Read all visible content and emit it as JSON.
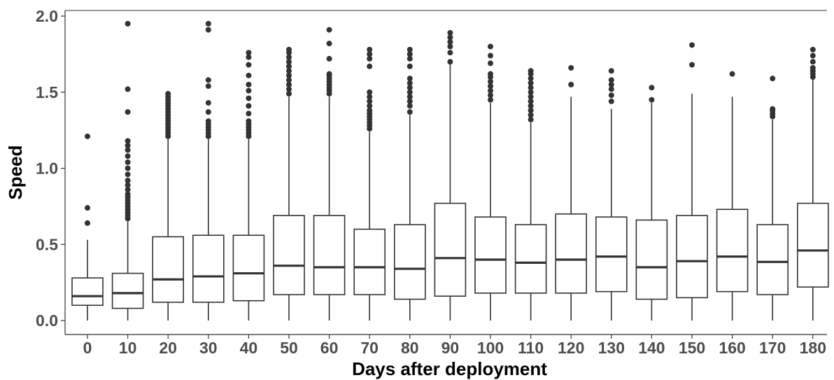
{
  "chart_data": {
    "type": "boxplot",
    "title": "",
    "xlabel": "Days after deployment",
    "ylabel": "Speed",
    "ylim": [
      0.0,
      2.0
    ],
    "y_ticks": [
      "0.0",
      "0.5",
      "1.0",
      "1.5",
      "2.0"
    ],
    "y_tick_values": [
      0.0,
      0.5,
      1.0,
      1.5,
      2.0
    ],
    "grid": false,
    "legend": "none",
    "colors": {
      "box_fill": "#ffffff",
      "box_stroke": "#333333",
      "outlier": "#333333",
      "axis": "#333333",
      "tick_label": "#4d4d4d",
      "axis_title": "#000000"
    },
    "categories": [
      "0",
      "10",
      "20",
      "30",
      "40",
      "50",
      "60",
      "70",
      "80",
      "90",
      "100",
      "110",
      "120",
      "130",
      "140",
      "150",
      "160",
      "170",
      "180"
    ],
    "boxes": [
      {
        "category": "0",
        "whisker_low": 0.0,
        "q1": 0.1,
        "median": 0.16,
        "q3": 0.28,
        "whisker_high": 0.53,
        "outliers": [
          0.64,
          0.74,
          1.21
        ]
      },
      {
        "category": "10",
        "whisker_low": 0.0,
        "q1": 0.08,
        "median": 0.18,
        "q3": 0.31,
        "whisker_high": 0.65,
        "outliers": [
          0.67,
          0.69,
          0.71,
          0.73,
          0.75,
          0.77,
          0.79,
          0.81,
          0.83,
          0.86,
          0.89,
          0.92,
          0.96,
          1.0,
          1.04,
          1.08,
          1.12,
          1.15,
          1.18,
          1.37,
          1.52,
          1.95
        ]
      },
      {
        "category": "20",
        "whisker_low": 0.0,
        "q1": 0.12,
        "median": 0.27,
        "q3": 0.55,
        "whisker_high": 1.19,
        "outliers": [
          1.21,
          1.23,
          1.25,
          1.27,
          1.29,
          1.31,
          1.33,
          1.35,
          1.37,
          1.39,
          1.41,
          1.43,
          1.45,
          1.47,
          1.49
        ]
      },
      {
        "category": "30",
        "whisker_low": 0.0,
        "q1": 0.12,
        "median": 0.29,
        "q3": 0.56,
        "whisker_high": 1.19,
        "outliers": [
          1.21,
          1.23,
          1.25,
          1.27,
          1.29,
          1.31,
          1.37,
          1.43,
          1.54,
          1.58,
          1.91,
          1.95
        ]
      },
      {
        "category": "40",
        "whisker_low": 0.0,
        "q1": 0.13,
        "median": 0.31,
        "q3": 0.56,
        "whisker_high": 1.19,
        "outliers": [
          1.21,
          1.23,
          1.25,
          1.27,
          1.29,
          1.31,
          1.36,
          1.41,
          1.46,
          1.51,
          1.55,
          1.61,
          1.68,
          1.73,
          1.76
        ]
      },
      {
        "category": "50",
        "whisker_low": 0.0,
        "q1": 0.17,
        "median": 0.36,
        "q3": 0.69,
        "whisker_high": 1.47,
        "outliers": [
          1.49,
          1.52,
          1.55,
          1.58,
          1.61,
          1.64,
          1.67,
          1.7,
          1.73,
          1.76,
          1.78
        ]
      },
      {
        "category": "60",
        "whisker_low": 0.0,
        "q1": 0.17,
        "median": 0.35,
        "q3": 0.69,
        "whisker_high": 1.47,
        "outliers": [
          1.49,
          1.51,
          1.53,
          1.55,
          1.57,
          1.59,
          1.61,
          1.62,
          1.72,
          1.82,
          1.91
        ]
      },
      {
        "category": "70",
        "whisker_low": 0.0,
        "q1": 0.17,
        "median": 0.35,
        "q3": 0.6,
        "whisker_high": 1.24,
        "outliers": [
          1.26,
          1.28,
          1.3,
          1.32,
          1.34,
          1.36,
          1.38,
          1.41,
          1.44,
          1.47,
          1.5,
          1.67,
          1.72,
          1.75,
          1.78
        ]
      },
      {
        "category": "80",
        "whisker_low": 0.0,
        "q1": 0.14,
        "median": 0.34,
        "q3": 0.63,
        "whisker_high": 1.35,
        "outliers": [
          1.37,
          1.41,
          1.44,
          1.47,
          1.5,
          1.53,
          1.56,
          1.59,
          1.67,
          1.72,
          1.75,
          1.78
        ]
      },
      {
        "category": "90",
        "whisker_low": 0.0,
        "q1": 0.16,
        "median": 0.41,
        "q3": 0.77,
        "whisker_high": 1.69,
        "outliers": [
          1.7,
          1.76,
          1.8,
          1.83,
          1.86,
          1.89
        ]
      },
      {
        "category": "100",
        "whisker_low": 0.0,
        "q1": 0.18,
        "median": 0.4,
        "q3": 0.68,
        "whisker_high": 1.43,
        "outliers": [
          1.45,
          1.48,
          1.51,
          1.54,
          1.57,
          1.6,
          1.62,
          1.69,
          1.74,
          1.8
        ]
      },
      {
        "category": "110",
        "whisker_low": 0.0,
        "q1": 0.18,
        "median": 0.38,
        "q3": 0.63,
        "whisker_high": 1.3,
        "outliers": [
          1.32,
          1.35,
          1.38,
          1.41,
          1.44,
          1.47,
          1.5,
          1.53,
          1.56,
          1.59,
          1.62,
          1.64
        ]
      },
      {
        "category": "120",
        "whisker_low": 0.0,
        "q1": 0.18,
        "median": 0.4,
        "q3": 0.7,
        "whisker_high": 1.47,
        "outliers": [
          1.55,
          1.66
        ]
      },
      {
        "category": "130",
        "whisker_low": 0.0,
        "q1": 0.19,
        "median": 0.42,
        "q3": 0.68,
        "whisker_high": 1.39,
        "outliers": [
          1.44,
          1.48,
          1.52,
          1.55,
          1.58,
          1.64
        ]
      },
      {
        "category": "140",
        "whisker_low": 0.0,
        "q1": 0.14,
        "median": 0.35,
        "q3": 0.66,
        "whisker_high": 1.43,
        "outliers": [
          1.45,
          1.53
        ]
      },
      {
        "category": "150",
        "whisker_low": 0.0,
        "q1": 0.15,
        "median": 0.39,
        "q3": 0.69,
        "whisker_high": 1.49,
        "outliers": [
          1.68,
          1.81
        ]
      },
      {
        "category": "160",
        "whisker_low": 0.0,
        "q1": 0.19,
        "median": 0.42,
        "q3": 0.73,
        "whisker_high": 1.47,
        "outliers": [
          1.62
        ]
      },
      {
        "category": "170",
        "whisker_low": 0.0,
        "q1": 0.17,
        "median": 0.385,
        "q3": 0.63,
        "whisker_high": 1.32,
        "outliers": [
          1.34,
          1.36,
          1.38,
          1.39,
          1.59
        ]
      },
      {
        "category": "180",
        "whisker_low": 0.0,
        "q1": 0.22,
        "median": 0.46,
        "q3": 0.77,
        "whisker_high": 1.59,
        "outliers": [
          1.6,
          1.62,
          1.64,
          1.66,
          1.7,
          1.74,
          1.78
        ]
      }
    ]
  }
}
